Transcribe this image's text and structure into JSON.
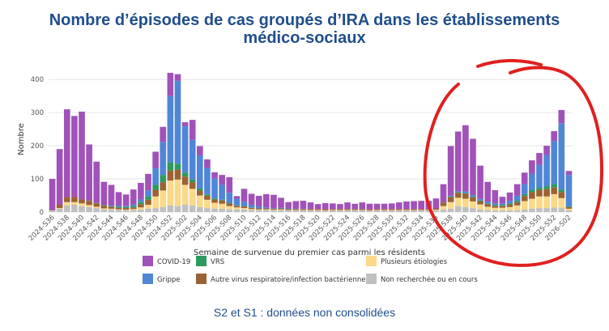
{
  "title": {
    "line1": "Nombre d’épisodes de cas groupés d’IRA dans les établissements",
    "line2": "médico-sociaux"
  },
  "footnote": "S2 et S1 : données non consolidées",
  "annotation": {
    "type": "hand-drawn-circle",
    "color": "#e02020"
  },
  "chart_data": {
    "type": "bar",
    "stacked": true,
    "xlabel": "Semaine de survenue du premier cas parmi les résidents",
    "ylabel": "Nombre",
    "ylim": [
      0,
      420
    ],
    "yticks": [
      0,
      100,
      200,
      300,
      400
    ],
    "grid": true,
    "legend_position": "bottom",
    "x_labels_shown": [
      "2024-S36",
      "2024-S38",
      "2024-S40",
      "2024-S42",
      "2024-S44",
      "2024-S46",
      "2024-S48",
      "2024-S50",
      "2024-S52",
      "2025-S02",
      "2025-S04",
      "2025-S06",
      "2025-S08",
      "2025-S10",
      "2025-S12",
      "2025-S14",
      "2025-S16",
      "2025-S18",
      "2025-S20",
      "2025-S22",
      "2025-S24",
      "2025-S26",
      "2025-S28",
      "2025-S30",
      "2025-S32",
      "2025-S34",
      "2025-S36",
      "2025-S38",
      "2025-S40",
      "2025-S42",
      "2025-S44",
      "2025-S46",
      "2025-S48",
      "2025-S50",
      "2025-S52",
      "2026-S02"
    ],
    "categories": [
      "2024-S36",
      "2024-S37",
      "2024-S38",
      "2024-S39",
      "2024-S40",
      "2024-S41",
      "2024-S42",
      "2024-S43",
      "2024-S44",
      "2024-S45",
      "2024-S46",
      "2024-S47",
      "2024-S48",
      "2024-S49",
      "2024-S50",
      "2024-S51",
      "2024-S52",
      "2025-S01",
      "2025-S02",
      "2025-S03",
      "2025-S04",
      "2025-S05",
      "2025-S06",
      "2025-S07",
      "2025-S08",
      "2025-S09",
      "2025-S10",
      "2025-S11",
      "2025-S12",
      "2025-S13",
      "2025-S14",
      "2025-S15",
      "2025-S16",
      "2025-S17",
      "2025-S18",
      "2025-S19",
      "2025-S20",
      "2025-S21",
      "2025-S22",
      "2025-S23",
      "2025-S24",
      "2025-S25",
      "2025-S26",
      "2025-S27",
      "2025-S28",
      "2025-S29",
      "2025-S30",
      "2025-S31",
      "2025-S32",
      "2025-S33",
      "2025-S34",
      "2025-S35",
      "2025-S36",
      "2025-S37",
      "2025-S38",
      "2025-S39",
      "2025-S40",
      "2025-S41",
      "2025-S42",
      "2025-S43",
      "2025-S44",
      "2025-S45",
      "2025-S46",
      "2025-S47",
      "2025-S48",
      "2025-S49",
      "2025-S50",
      "2025-S51",
      "2025-S52",
      "2026-S01",
      "2026-S02"
    ],
    "series": [
      {
        "name": "Non recherchée ou en cours",
        "color": "#c0c0c0",
        "values": [
          5,
          10,
          20,
          22,
          18,
          15,
          12,
          8,
          8,
          6,
          5,
          6,
          8,
          10,
          12,
          15,
          20,
          18,
          22,
          20,
          15,
          12,
          10,
          10,
          8,
          8,
          8,
          6,
          6,
          6,
          5,
          6,
          5,
          5,
          5,
          5,
          5,
          4,
          5,
          5,
          5,
          5,
          5,
          4,
          5,
          5,
          5,
          5,
          5,
          5,
          5,
          5,
          5,
          8,
          10,
          18,
          15,
          12,
          8,
          6,
          5,
          5,
          5,
          5,
          8,
          10,
          12,
          12,
          14,
          12,
          5
        ]
      },
      {
        "name": "Plusieurs étiologies",
        "color": "#fbd98a",
        "values": [
          0,
          2,
          10,
          8,
          8,
          6,
          4,
          3,
          2,
          2,
          2,
          3,
          6,
          12,
          35,
          50,
          75,
          80,
          60,
          50,
          35,
          25,
          18,
          15,
          10,
          6,
          4,
          3,
          2,
          2,
          2,
          2,
          1,
          1,
          1,
          1,
          1,
          1,
          1,
          1,
          1,
          1,
          1,
          1,
          1,
          1,
          1,
          1,
          1,
          1,
          1,
          1,
          2,
          10,
          20,
          25,
          25,
          20,
          15,
          10,
          8,
          8,
          10,
          15,
          25,
          30,
          35,
          35,
          40,
          30,
          5
        ]
      },
      {
        "name": "Autre virus respiratoire/infection bactérienne",
        "color": "#9c6234",
        "values": [
          2,
          10,
          15,
          15,
          12,
          12,
          10,
          8,
          6,
          5,
          5,
          5,
          10,
          15,
          20,
          25,
          30,
          30,
          25,
          20,
          15,
          12,
          10,
          10,
          8,
          5,
          5,
          4,
          3,
          3,
          3,
          3,
          3,
          3,
          3,
          3,
          3,
          3,
          3,
          3,
          3,
          3,
          3,
          3,
          3,
          3,
          3,
          3,
          3,
          3,
          3,
          3,
          4,
          10,
          15,
          15,
          15,
          12,
          10,
          8,
          6,
          6,
          8,
          10,
          15,
          20,
          20,
          22,
          20,
          18,
          5
        ]
      },
      {
        "name": "VRS",
        "color": "#2e9a5e",
        "values": [
          0,
          0,
          0,
          0,
          0,
          1,
          1,
          2,
          2,
          3,
          3,
          4,
          6,
          10,
          15,
          22,
          25,
          18,
          12,
          8,
          6,
          4,
          3,
          2,
          2,
          1,
          1,
          1,
          0,
          0,
          0,
          0,
          0,
          0,
          0,
          0,
          0,
          0,
          0,
          0,
          0,
          0,
          0,
          0,
          0,
          0,
          0,
          0,
          0,
          0,
          0,
          0,
          0,
          1,
          2,
          2,
          2,
          2,
          2,
          2,
          2,
          2,
          3,
          4,
          6,
          6,
          6,
          8,
          10,
          8,
          2
        ]
      },
      {
        "name": "Grippe",
        "color": "#4f86d6",
        "values": [
          0,
          0,
          0,
          0,
          0,
          0,
          0,
          0,
          1,
          2,
          3,
          5,
          8,
          18,
          50,
          100,
          200,
          250,
          140,
          120,
          100,
          80,
          60,
          45,
          30,
          20,
          12,
          8,
          5,
          3,
          2,
          2,
          2,
          1,
          1,
          0,
          0,
          0,
          0,
          0,
          0,
          0,
          0,
          0,
          0,
          0,
          0,
          0,
          0,
          0,
          0,
          0,
          0,
          0,
          2,
          3,
          5,
          5,
          5,
          5,
          5,
          5,
          8,
          15,
          30,
          50,
          70,
          95,
          130,
          200,
          95
        ]
      },
      {
        "name": "COVID-19",
        "color": "#a052b8",
        "values": [
          93,
          168,
          265,
          245,
          265,
          170,
          125,
          70,
          63,
          42,
          35,
          45,
          50,
          50,
          50,
          45,
          70,
          20,
          12,
          60,
          28,
          26,
          19,
          30,
          47,
          8,
          40,
          33,
          33,
          40,
          40,
          30,
          19,
          23,
          24,
          20,
          15,
          19,
          17,
          15,
          20,
          16,
          20,
          17,
          16,
          16,
          17,
          20,
          23,
          24,
          25,
          25,
          30,
          55,
          150,
          180,
          200,
          170,
          100,
          60,
          40,
          20,
          25,
          35,
          35,
          40,
          35,
          28,
          30,
          40,
          12
        ]
      }
    ]
  }
}
